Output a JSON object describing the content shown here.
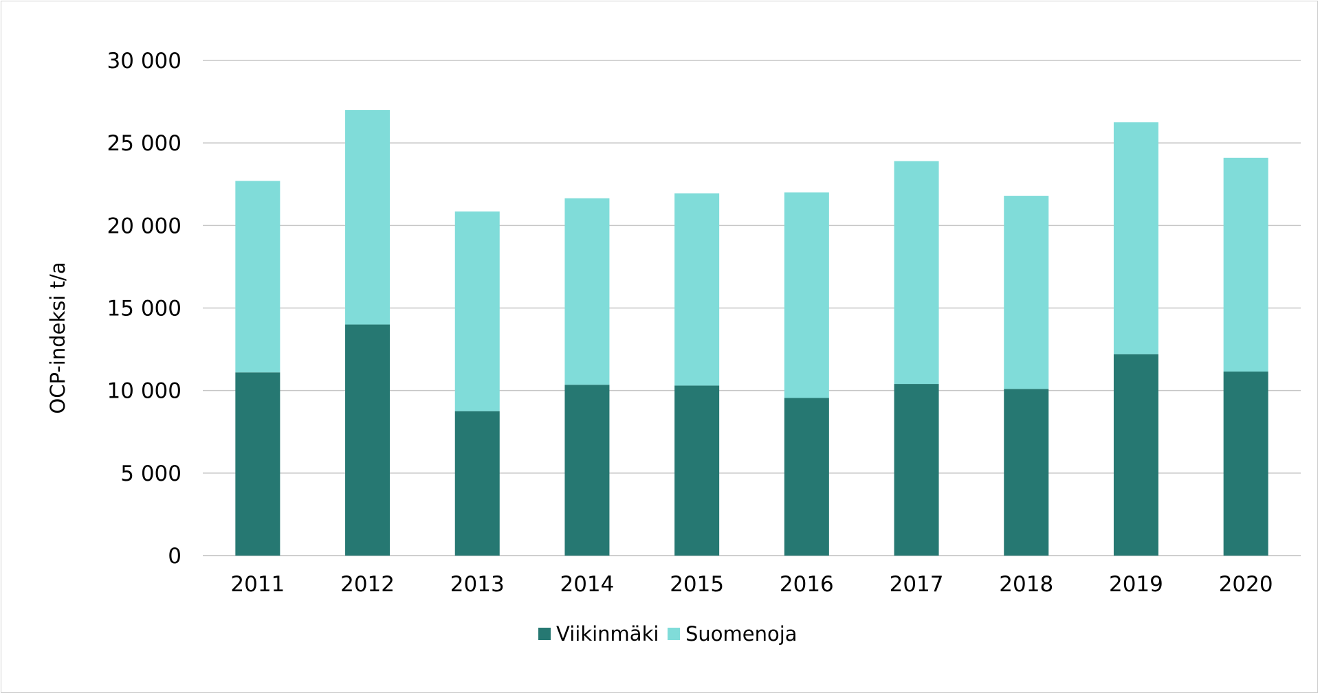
{
  "chart_data": {
    "type": "bar",
    "stacked": true,
    "title": "",
    "xlabel": "",
    "ylabel": "OCP-indeksi t/a",
    "ylim": [
      0,
      30000
    ],
    "yticks": [
      0,
      5000,
      10000,
      15000,
      20000,
      25000,
      30000
    ],
    "ytick_labels": [
      "0",
      "5 000",
      "10 000",
      "15 000",
      "20 000",
      "25 000",
      "30 000"
    ],
    "categories": [
      "2011",
      "2012",
      "2013",
      "2014",
      "2015",
      "2016",
      "2017",
      "2018",
      "2019",
      "2020"
    ],
    "series": [
      {
        "name": "Viikinmäki",
        "color": "#267872",
        "values": [
          11100,
          14000,
          8750,
          10350,
          10300,
          9550,
          10400,
          10100,
          12200,
          11150
        ]
      },
      {
        "name": "Suomenoja",
        "color": "#80dcd9",
        "values": [
          11600,
          13000,
          12100,
          11300,
          11650,
          12450,
          13500,
          11700,
          14050,
          12950
        ]
      }
    ],
    "grid": "horizontal",
    "legend": "bottom-center"
  }
}
